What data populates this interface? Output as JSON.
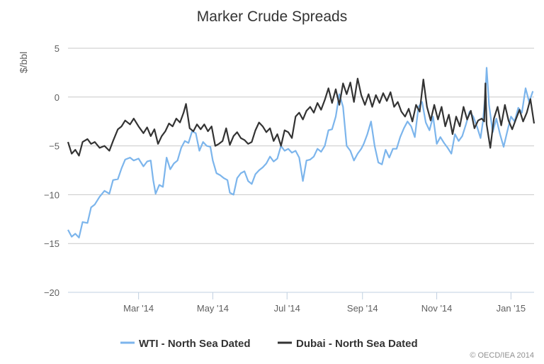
{
  "chart_data": {
    "type": "line",
    "title": "Marker Crude Spreads",
    "ylabel": "$/bbl",
    "xlabel": "",
    "ylim": [
      -20,
      5
    ],
    "yticks": [
      5,
      0,
      -5,
      -10,
      -15,
      -20
    ],
    "x_range": [
      "2014-01-02",
      "2015-01-20"
    ],
    "xticks": [
      {
        "date": "2014-03-01",
        "label": "Mar '14"
      },
      {
        "date": "2014-05-01",
        "label": "May '14"
      },
      {
        "date": "2014-07-01",
        "label": "Jul '14"
      },
      {
        "date": "2014-09-01",
        "label": "Sep '14"
      },
      {
        "date": "2014-11-01",
        "label": "Nov '14"
      },
      {
        "date": "2015-01-01",
        "label": "Jan '15"
      }
    ],
    "grid": true,
    "legend_position": "bottom",
    "series": [
      {
        "name": "WTI - North Sea Dated",
        "color": "#7cb5ec",
        "points": [
          [
            "2014-01-02",
            -13.6
          ],
          [
            "2014-01-05",
            -14.3
          ],
          [
            "2014-01-08",
            -14.0
          ],
          [
            "2014-01-11",
            -14.4
          ],
          [
            "2014-01-14",
            -12.8
          ],
          [
            "2014-01-18",
            -12.9
          ],
          [
            "2014-01-21",
            -11.3
          ],
          [
            "2014-01-24",
            -11.0
          ],
          [
            "2014-01-28",
            -10.2
          ],
          [
            "2014-02-01",
            -9.6
          ],
          [
            "2014-02-05",
            -9.9
          ],
          [
            "2014-02-08",
            -8.5
          ],
          [
            "2014-02-12",
            -8.4
          ],
          [
            "2014-02-15",
            -7.3
          ],
          [
            "2014-02-18",
            -6.4
          ],
          [
            "2014-02-22",
            -6.2
          ],
          [
            "2014-02-25",
            -6.5
          ],
          [
            "2014-03-01",
            -6.3
          ],
          [
            "2014-03-05",
            -7.1
          ],
          [
            "2014-03-08",
            -6.6
          ],
          [
            "2014-03-11",
            -6.5
          ],
          [
            "2014-03-13",
            -8.5
          ],
          [
            "2014-03-15",
            -9.9
          ],
          [
            "2014-03-18",
            -9.0
          ],
          [
            "2014-03-21",
            -9.2
          ],
          [
            "2014-03-24",
            -6.2
          ],
          [
            "2014-03-27",
            -7.4
          ],
          [
            "2014-03-30",
            -6.8
          ],
          [
            "2014-04-02",
            -6.5
          ],
          [
            "2014-04-05",
            -5.2
          ],
          [
            "2014-04-08",
            -4.5
          ],
          [
            "2014-04-11",
            -4.7
          ],
          [
            "2014-04-14",
            -3.5
          ],
          [
            "2014-04-17",
            -3.7
          ],
          [
            "2014-04-20",
            -5.5
          ],
          [
            "2014-04-23",
            -4.6
          ],
          [
            "2014-04-26",
            -5.0
          ],
          [
            "2014-04-29",
            -5.1
          ],
          [
            "2014-05-01",
            -6.5
          ],
          [
            "2014-05-04",
            -7.8
          ],
          [
            "2014-05-07",
            -8.0
          ],
          [
            "2014-05-10",
            -8.3
          ],
          [
            "2014-05-13",
            -8.5
          ],
          [
            "2014-05-15",
            -9.8
          ],
          [
            "2014-05-18",
            -10.0
          ],
          [
            "2014-05-21",
            -8.3
          ],
          [
            "2014-05-24",
            -7.8
          ],
          [
            "2014-05-27",
            -7.6
          ],
          [
            "2014-05-30",
            -8.6
          ],
          [
            "2014-06-02",
            -8.9
          ],
          [
            "2014-06-05",
            -7.9
          ],
          [
            "2014-06-08",
            -7.5
          ],
          [
            "2014-06-11",
            -7.2
          ],
          [
            "2014-06-14",
            -6.8
          ],
          [
            "2014-06-17",
            -6.1
          ],
          [
            "2014-06-20",
            -6.6
          ],
          [
            "2014-06-23",
            -6.3
          ],
          [
            "2014-06-26",
            -5.0
          ],
          [
            "2014-06-29",
            -5.5
          ],
          [
            "2014-07-02",
            -5.3
          ],
          [
            "2014-07-05",
            -5.7
          ],
          [
            "2014-07-08",
            -5.5
          ],
          [
            "2014-07-11",
            -6.2
          ],
          [
            "2014-07-14",
            -8.6
          ],
          [
            "2014-07-17",
            -6.5
          ],
          [
            "2014-07-20",
            -6.4
          ],
          [
            "2014-07-23",
            -6.1
          ],
          [
            "2014-07-26",
            -5.3
          ],
          [
            "2014-07-29",
            -5.6
          ],
          [
            "2014-08-01",
            -5.0
          ],
          [
            "2014-08-04",
            -3.4
          ],
          [
            "2014-08-07",
            -3.3
          ],
          [
            "2014-08-10",
            -2.0
          ],
          [
            "2014-08-13",
            0.3
          ],
          [
            "2014-08-16",
            -1.0
          ],
          [
            "2014-08-19",
            -5.0
          ],
          [
            "2014-08-22",
            -5.5
          ],
          [
            "2014-08-25",
            -6.5
          ],
          [
            "2014-08-28",
            -5.8
          ],
          [
            "2014-08-31",
            -5.3
          ],
          [
            "2014-09-02",
            -4.8
          ],
          [
            "2014-09-05",
            -3.8
          ],
          [
            "2014-09-08",
            -2.5
          ],
          [
            "2014-09-11",
            -5.0
          ],
          [
            "2014-09-14",
            -6.7
          ],
          [
            "2014-09-17",
            -6.9
          ],
          [
            "2014-09-20",
            -5.4
          ],
          [
            "2014-09-23",
            -6.2
          ],
          [
            "2014-09-26",
            -5.3
          ],
          [
            "2014-09-29",
            -5.3
          ],
          [
            "2014-10-02",
            -4.1
          ],
          [
            "2014-10-05",
            -3.2
          ],
          [
            "2014-10-08",
            -2.5
          ],
          [
            "2014-10-11",
            -3.0
          ],
          [
            "2014-10-14",
            -4.1
          ],
          [
            "2014-10-17",
            -1.0
          ],
          [
            "2014-10-20",
            -0.5
          ],
          [
            "2014-10-23",
            -2.6
          ],
          [
            "2014-10-26",
            -3.4
          ],
          [
            "2014-10-29",
            -2.0
          ],
          [
            "2014-11-01",
            -4.8
          ],
          [
            "2014-11-04",
            -4.1
          ],
          [
            "2014-11-07",
            -4.7
          ],
          [
            "2014-11-10",
            -5.2
          ],
          [
            "2014-11-13",
            -5.8
          ],
          [
            "2014-11-16",
            -3.8
          ],
          [
            "2014-11-19",
            -4.5
          ],
          [
            "2014-11-22",
            -4.0
          ],
          [
            "2014-11-25",
            -2.8
          ],
          [
            "2014-11-28",
            -1.5
          ],
          [
            "2014-12-01",
            -2.0
          ],
          [
            "2014-12-04",
            -3.0
          ],
          [
            "2014-12-07",
            -4.2
          ],
          [
            "2014-12-09",
            -2.5
          ],
          [
            "2014-12-11",
            0.4
          ],
          [
            "2014-12-12",
            3.0
          ],
          [
            "2014-12-14",
            -0.8
          ],
          [
            "2014-12-17",
            -3.6
          ],
          [
            "2014-12-20",
            -2.2
          ],
          [
            "2014-12-23",
            -3.8
          ],
          [
            "2014-12-26",
            -5.1
          ],
          [
            "2014-12-29",
            -3.5
          ],
          [
            "2015-01-01",
            -2.0
          ],
          [
            "2015-01-04",
            -2.5
          ],
          [
            "2015-01-07",
            -1.1
          ],
          [
            "2015-01-10",
            -1.6
          ],
          [
            "2015-01-13",
            0.9
          ],
          [
            "2015-01-16",
            -0.5
          ],
          [
            "2015-01-19",
            0.6
          ]
        ]
      },
      {
        "name": "Dubai - North Sea Dated",
        "color": "#333333",
        "points": [
          [
            "2014-01-02",
            -4.6
          ],
          [
            "2014-01-05",
            -5.8
          ],
          [
            "2014-01-08",
            -5.4
          ],
          [
            "2014-01-11",
            -6.0
          ],
          [
            "2014-01-14",
            -4.6
          ],
          [
            "2014-01-18",
            -4.3
          ],
          [
            "2014-01-21",
            -4.8
          ],
          [
            "2014-01-24",
            -4.6
          ],
          [
            "2014-01-28",
            -5.2
          ],
          [
            "2014-02-01",
            -5.0
          ],
          [
            "2014-02-05",
            -5.5
          ],
          [
            "2014-02-08",
            -4.5
          ],
          [
            "2014-02-12",
            -3.3
          ],
          [
            "2014-02-15",
            -3.0
          ],
          [
            "2014-02-18",
            -2.4
          ],
          [
            "2014-02-22",
            -2.8
          ],
          [
            "2014-02-25",
            -2.2
          ],
          [
            "2014-03-01",
            -3.0
          ],
          [
            "2014-03-05",
            -3.7
          ],
          [
            "2014-03-08",
            -3.1
          ],
          [
            "2014-03-11",
            -4.0
          ],
          [
            "2014-03-14",
            -3.3
          ],
          [
            "2014-03-17",
            -4.8
          ],
          [
            "2014-03-20",
            -4.0
          ],
          [
            "2014-03-23",
            -3.5
          ],
          [
            "2014-03-26",
            -2.7
          ],
          [
            "2014-03-29",
            -3.0
          ],
          [
            "2014-04-01",
            -2.2
          ],
          [
            "2014-04-04",
            -2.6
          ],
          [
            "2014-04-07",
            -1.6
          ],
          [
            "2014-04-09",
            -0.7
          ],
          [
            "2014-04-12",
            -3.2
          ],
          [
            "2014-04-15",
            -3.5
          ],
          [
            "2014-04-18",
            -2.8
          ],
          [
            "2014-04-21",
            -3.3
          ],
          [
            "2014-04-24",
            -2.8
          ],
          [
            "2014-04-27",
            -3.5
          ],
          [
            "2014-04-30",
            -3.0
          ],
          [
            "2014-05-03",
            -5.0
          ],
          [
            "2014-05-06",
            -4.8
          ],
          [
            "2014-05-09",
            -4.5
          ],
          [
            "2014-05-12",
            -3.2
          ],
          [
            "2014-05-15",
            -4.9
          ],
          [
            "2014-05-18",
            -4.0
          ],
          [
            "2014-05-21",
            -3.6
          ],
          [
            "2014-05-24",
            -4.2
          ],
          [
            "2014-05-27",
            -4.4
          ],
          [
            "2014-05-30",
            -4.8
          ],
          [
            "2014-06-02",
            -4.6
          ],
          [
            "2014-06-05",
            -3.4
          ],
          [
            "2014-06-08",
            -2.6
          ],
          [
            "2014-06-11",
            -3.0
          ],
          [
            "2014-06-14",
            -3.6
          ],
          [
            "2014-06-17",
            -3.2
          ],
          [
            "2014-06-20",
            -4.5
          ],
          [
            "2014-06-23",
            -3.8
          ],
          [
            "2014-06-26",
            -5.0
          ],
          [
            "2014-06-29",
            -3.4
          ],
          [
            "2014-07-02",
            -3.6
          ],
          [
            "2014-07-05",
            -4.2
          ],
          [
            "2014-07-08",
            -2.0
          ],
          [
            "2014-07-11",
            -1.6
          ],
          [
            "2014-07-14",
            -2.3
          ],
          [
            "2014-07-17",
            -1.4
          ],
          [
            "2014-07-20",
            -1.0
          ],
          [
            "2014-07-23",
            -1.6
          ],
          [
            "2014-07-26",
            -0.6
          ],
          [
            "2014-07-29",
            -1.3
          ],
          [
            "2014-08-01",
            -0.3
          ],
          [
            "2014-08-04",
            0.9
          ],
          [
            "2014-08-07",
            -0.6
          ],
          [
            "2014-08-10",
            0.8
          ],
          [
            "2014-08-13",
            -0.8
          ],
          [
            "2014-08-16",
            1.4
          ],
          [
            "2014-08-19",
            0.3
          ],
          [
            "2014-08-22",
            1.5
          ],
          [
            "2014-08-25",
            -0.5
          ],
          [
            "2014-08-28",
            1.9
          ],
          [
            "2014-08-31",
            0.2
          ],
          [
            "2014-09-03",
            -0.8
          ],
          [
            "2014-09-06",
            0.3
          ],
          [
            "2014-09-09",
            -1.0
          ],
          [
            "2014-09-12",
            0.2
          ],
          [
            "2014-09-15",
            -0.6
          ],
          [
            "2014-09-18",
            0.4
          ],
          [
            "2014-09-21",
            -0.4
          ],
          [
            "2014-09-24",
            0.5
          ],
          [
            "2014-09-27",
            -1.0
          ],
          [
            "2014-09-30",
            -0.5
          ],
          [
            "2014-10-03",
            -1.5
          ],
          [
            "2014-10-06",
            -2.0
          ],
          [
            "2014-10-09",
            -1.2
          ],
          [
            "2014-10-12",
            -2.5
          ],
          [
            "2014-10-15",
            -0.8
          ],
          [
            "2014-10-18",
            -1.5
          ],
          [
            "2014-10-21",
            1.8
          ],
          [
            "2014-10-24",
            -1.0
          ],
          [
            "2014-10-27",
            -2.4
          ],
          [
            "2014-10-30",
            -0.8
          ],
          [
            "2014-11-02",
            -2.3
          ],
          [
            "2014-11-05",
            -1.0
          ],
          [
            "2014-11-08",
            -3.0
          ],
          [
            "2014-11-11",
            -1.8
          ],
          [
            "2014-11-14",
            -3.8
          ],
          [
            "2014-11-17",
            -2.0
          ],
          [
            "2014-11-20",
            -3.0
          ],
          [
            "2014-11-23",
            -1.0
          ],
          [
            "2014-11-26",
            -2.3
          ],
          [
            "2014-11-29",
            -1.4
          ],
          [
            "2014-12-02",
            -3.2
          ],
          [
            "2014-12-05",
            -2.4
          ],
          [
            "2014-12-08",
            -2.2
          ],
          [
            "2014-12-10",
            -2.5
          ],
          [
            "2014-12-11",
            1.4
          ],
          [
            "2014-12-12",
            -2.8
          ],
          [
            "2014-12-15",
            -5.2
          ],
          [
            "2014-12-18",
            -2.2
          ],
          [
            "2014-12-21",
            -1.0
          ],
          [
            "2014-12-24",
            -2.9
          ],
          [
            "2014-12-27",
            -0.8
          ],
          [
            "2014-12-30",
            -2.4
          ],
          [
            "2015-01-02",
            -3.3
          ],
          [
            "2015-01-05",
            -2.3
          ],
          [
            "2015-01-08",
            -1.3
          ],
          [
            "2015-01-11",
            -2.5
          ],
          [
            "2015-01-14",
            -1.6
          ],
          [
            "2015-01-17",
            -0.2
          ],
          [
            "2015-01-20",
            -2.7
          ]
        ]
      }
    ],
    "credit": "© OECD/IEA 2014"
  }
}
